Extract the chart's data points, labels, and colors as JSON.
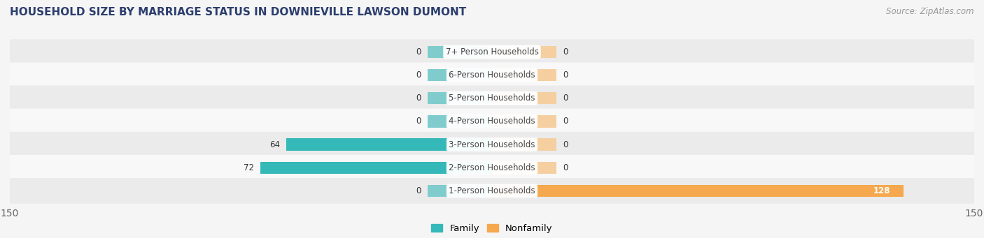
{
  "title": "HOUSEHOLD SIZE BY MARRIAGE STATUS IN DOWNIEVILLE LAWSON DUMONT",
  "source": "Source: ZipAtlas.com",
  "categories": [
    "7+ Person Households",
    "6-Person Households",
    "5-Person Households",
    "4-Person Households",
    "3-Person Households",
    "2-Person Households",
    "1-Person Households"
  ],
  "family_values": [
    0,
    0,
    0,
    0,
    64,
    72,
    0
  ],
  "nonfamily_values": [
    0,
    0,
    0,
    0,
    0,
    0,
    128
  ],
  "family_color_dark": "#35b8b8",
  "family_color_light": "#80cccc",
  "nonfamily_color_dark": "#f5a84e",
  "nonfamily_color_light": "#f5cfa0",
  "xlim": 150,
  "row_bg_light": "#ebebeb",
  "row_bg_white": "#f8f8f8",
  "fig_bg": "#f5f5f5",
  "title_color": "#2c3e6e",
  "source_color": "#999999",
  "label_color": "#444444",
  "value_color_dark": "#333333",
  "title_fontsize": 11,
  "source_fontsize": 8.5,
  "legend_fontsize": 9.5,
  "bar_fontsize": 8.5,
  "cat_fontsize": 8.5,
  "bar_height": 0.52,
  "stub_size": 20
}
